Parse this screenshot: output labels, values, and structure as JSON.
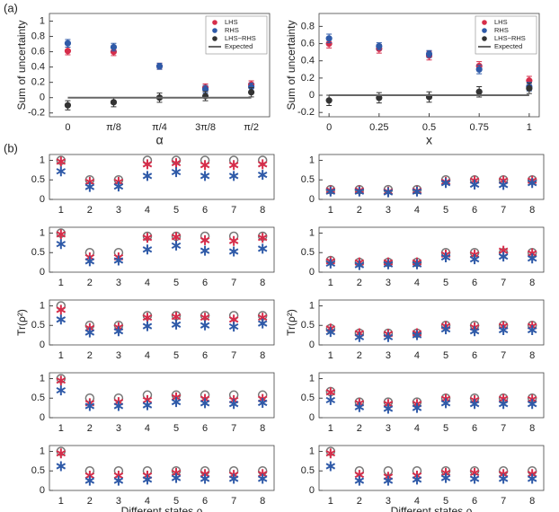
{
  "panel_labels": [
    "(a)",
    "(b)"
  ],
  "chart_data": [
    {
      "type": "errorbar",
      "ylabel": "Sum of uncertainty",
      "xlabel": "α",
      "categories": [
        "0",
        "π/8",
        "π/4",
        "3π/8",
        "π/2"
      ],
      "ylim": [
        -0.25,
        1.1
      ],
      "yticks": [
        -0.2,
        0,
        0.2,
        0.4,
        0.6,
        0.8,
        1
      ],
      "legend": "upper right",
      "series": [
        {
          "name": "LHS",
          "color": "#d62d4a",
          "marker": "dot",
          "values": [
            0.61,
            0.6,
            0.41,
            0.13,
            0.17
          ],
          "errors": [
            0.05,
            0.05,
            0.04,
            0.05,
            0.05
          ]
        },
        {
          "name": "RHS",
          "color": "#2f5aa8",
          "marker": "dot",
          "values": [
            0.71,
            0.66,
            0.41,
            0.11,
            0.14
          ],
          "errors": [
            0.05,
            0.05,
            0.04,
            0.05,
            0.05
          ]
        },
        {
          "name": "LHS−RHS",
          "color": "#333333",
          "marker": "dot",
          "values": [
            -0.1,
            -0.06,
            0.0,
            0.02,
            0.07
          ],
          "errors": [
            0.06,
            0.06,
            0.06,
            0.06,
            0.06
          ]
        },
        {
          "name": "Expected",
          "color": "#666666",
          "marker": "line",
          "values": [
            0,
            0,
            0,
            0,
            0
          ]
        }
      ]
    },
    {
      "type": "errorbar",
      "ylabel": "Sum of uncertainty",
      "xlabel": "x",
      "x": [
        0,
        0.25,
        0.5,
        0.75,
        1
      ],
      "xlim": [
        -0.05,
        1.05
      ],
      "xticks": [
        0,
        0.25,
        0.5,
        0.75,
        1
      ],
      "ylim": [
        -0.25,
        0.95
      ],
      "yticks": [
        -0.2,
        0,
        0.2,
        0.4,
        0.6,
        0.8
      ],
      "legend": "upper right",
      "series": [
        {
          "name": "LHS",
          "color": "#d62d4a",
          "marker": "dot",
          "values": [
            0.6,
            0.54,
            0.46,
            0.34,
            0.17
          ],
          "errors": [
            0.05,
            0.05,
            0.05,
            0.05,
            0.05
          ]
        },
        {
          "name": "RHS",
          "color": "#2f5aa8",
          "marker": "dot",
          "values": [
            0.66,
            0.57,
            0.48,
            0.3,
            0.1
          ],
          "errors": [
            0.05,
            0.04,
            0.04,
            0.05,
            0.05
          ]
        },
        {
          "name": "LHS−RHS",
          "color": "#333333",
          "marker": "dot",
          "values": [
            -0.06,
            -0.03,
            -0.02,
            0.04,
            0.08
          ],
          "errors": [
            0.06,
            0.06,
            0.06,
            0.06,
            0.06
          ]
        },
        {
          "name": "Expected",
          "color": "#666666",
          "marker": "line",
          "values": [
            0,
            0,
            0,
            0,
            0
          ]
        }
      ]
    },
    {
      "type": "scatter",
      "categories": [
        "1",
        "2",
        "3",
        "4",
        "5",
        "6",
        "7",
        "8"
      ],
      "ylim": [
        0,
        1.15
      ],
      "yticks": [
        0,
        0.5,
        1
      ],
      "series": [
        {
          "color": "#777777",
          "marker": "circle",
          "values": [
            1,
            0.5,
            0.5,
            1,
            1,
            1,
            1,
            1
          ]
        },
        {
          "color": "#d62d4a",
          "marker": "star",
          "values": [
            0.97,
            0.45,
            0.45,
            0.9,
            0.93,
            0.88,
            0.88,
            0.9
          ]
        },
        {
          "color": "#2f5aa8",
          "marker": "star",
          "values": [
            0.72,
            0.32,
            0.33,
            0.6,
            0.7,
            0.6,
            0.6,
            0.63
          ]
        }
      ]
    },
    {
      "type": "scatter",
      "categories": [
        "1",
        "2",
        "3",
        "4",
        "5",
        "6",
        "7",
        "8"
      ],
      "ylim": [
        0,
        1.15
      ],
      "yticks": [
        0,
        0.5,
        1
      ],
      "series": [
        {
          "color": "#777777",
          "marker": "circle",
          "values": [
            0.25,
            0.25,
            0.25,
            0.25,
            0.5,
            0.5,
            0.5,
            0.5
          ]
        },
        {
          "color": "#d62d4a",
          "marker": "star",
          "values": [
            0.23,
            0.23,
            0.2,
            0.22,
            0.45,
            0.48,
            0.48,
            0.48
          ]
        },
        {
          "color": "#2f5aa8",
          "marker": "star",
          "values": [
            0.2,
            0.2,
            0.18,
            0.2,
            0.42,
            0.38,
            0.37,
            0.42
          ]
        }
      ]
    },
    {
      "type": "scatter",
      "categories": [
        "1",
        "2",
        "3",
        "4",
        "5",
        "6",
        "7",
        "8"
      ],
      "ylim": [
        0,
        1.15
      ],
      "yticks": [
        0,
        0.5,
        1
      ],
      "series": [
        {
          "color": "#777777",
          "marker": "circle",
          "values": [
            1,
            0.5,
            0.5,
            0.92,
            0.92,
            0.92,
            0.92,
            0.92
          ]
        },
        {
          "color": "#d62d4a",
          "marker": "star",
          "values": [
            0.97,
            0.38,
            0.38,
            0.88,
            0.9,
            0.82,
            0.8,
            0.88
          ]
        },
        {
          "color": "#2f5aa8",
          "marker": "star",
          "values": [
            0.72,
            0.28,
            0.3,
            0.58,
            0.68,
            0.55,
            0.53,
            0.6
          ]
        }
      ]
    },
    {
      "type": "scatter",
      "categories": [
        "1",
        "2",
        "3",
        "4",
        "5",
        "6",
        "7",
        "8"
      ],
      "ylim": [
        0,
        1.15
      ],
      "yticks": [
        0,
        0.5,
        1
      ],
      "series": [
        {
          "color": "#777777",
          "marker": "circle",
          "values": [
            0.3,
            0.25,
            0.25,
            0.25,
            0.5,
            0.5,
            0.5,
            0.5
          ]
        },
        {
          "color": "#d62d4a",
          "marker": "star",
          "values": [
            0.28,
            0.25,
            0.25,
            0.25,
            0.45,
            0.45,
            0.55,
            0.48
          ]
        },
        {
          "color": "#2f5aa8",
          "marker": "star",
          "values": [
            0.22,
            0.18,
            0.2,
            0.2,
            0.38,
            0.33,
            0.4,
            0.35
          ]
        }
      ]
    },
    {
      "type": "scatter",
      "ylabel": "Tr(ρ²)",
      "categories": [
        "1",
        "2",
        "3",
        "4",
        "5",
        "6",
        "7",
        "8"
      ],
      "ylim": [
        0,
        1.15
      ],
      "yticks": [
        0,
        0.5,
        1
      ],
      "series": [
        {
          "color": "#777777",
          "marker": "circle",
          "values": [
            1,
            0.5,
            0.5,
            0.75,
            0.75,
            0.75,
            0.75,
            0.75
          ]
        },
        {
          "color": "#d62d4a",
          "marker": "star",
          "values": [
            0.9,
            0.43,
            0.45,
            0.7,
            0.72,
            0.7,
            0.65,
            0.7
          ]
        },
        {
          "color": "#2f5aa8",
          "marker": "star",
          "values": [
            0.65,
            0.32,
            0.35,
            0.48,
            0.52,
            0.5,
            0.47,
            0.55
          ]
        }
      ]
    },
    {
      "type": "scatter",
      "ylabel": "Tr(ρ²)",
      "categories": [
        "1",
        "2",
        "3",
        "4",
        "5",
        "6",
        "7",
        "8"
      ],
      "ylim": [
        0,
        1.15
      ],
      "yticks": [
        0,
        0.5,
        1
      ],
      "series": [
        {
          "color": "#777777",
          "marker": "circle",
          "values": [
            0.42,
            0.3,
            0.3,
            0.3,
            0.5,
            0.5,
            0.5,
            0.5
          ]
        },
        {
          "color": "#d62d4a",
          "marker": "star",
          "values": [
            0.42,
            0.3,
            0.28,
            0.3,
            0.48,
            0.45,
            0.48,
            0.48
          ]
        },
        {
          "color": "#2f5aa8",
          "marker": "star",
          "values": [
            0.33,
            0.2,
            0.2,
            0.25,
            0.4,
            0.35,
            0.38,
            0.38
          ]
        }
      ]
    },
    {
      "type": "scatter",
      "categories": [
        "1",
        "2",
        "3",
        "4",
        "5",
        "6",
        "7",
        "8"
      ],
      "ylim": [
        0,
        1.15
      ],
      "yticks": [
        0,
        0.5,
        1
      ],
      "series": [
        {
          "color": "#777777",
          "marker": "circle",
          "values": [
            1,
            0.5,
            0.5,
            0.58,
            0.58,
            0.58,
            0.58,
            0.58
          ]
        },
        {
          "color": "#d62d4a",
          "marker": "star",
          "values": [
            0.95,
            0.37,
            0.4,
            0.45,
            0.52,
            0.48,
            0.45,
            0.48
          ]
        },
        {
          "color": "#2f5aa8",
          "marker": "star",
          "values": [
            0.7,
            0.3,
            0.3,
            0.32,
            0.4,
            0.37,
            0.35,
            0.38
          ]
        }
      ]
    },
    {
      "type": "scatter",
      "categories": [
        "1",
        "2",
        "3",
        "4",
        "5",
        "6",
        "7",
        "8"
      ],
      "ylim": [
        0,
        1.15
      ],
      "yticks": [
        0,
        0.5,
        1
      ],
      "series": [
        {
          "color": "#777777",
          "marker": "circle",
          "values": [
            0.67,
            0.4,
            0.4,
            0.4,
            0.5,
            0.5,
            0.5,
            0.5
          ]
        },
        {
          "color": "#d62d4a",
          "marker": "star",
          "values": [
            0.65,
            0.37,
            0.35,
            0.35,
            0.48,
            0.45,
            0.48,
            0.47
          ]
        },
        {
          "color": "#2f5aa8",
          "marker": "star",
          "values": [
            0.45,
            0.27,
            0.23,
            0.25,
            0.37,
            0.35,
            0.35,
            0.35
          ]
        }
      ]
    },
    {
      "type": "scatter",
      "xlabel": "Different states ρ",
      "categories": [
        "1",
        "2",
        "3",
        "4",
        "5",
        "6",
        "7",
        "8"
      ],
      "ylim": [
        0,
        1.15
      ],
      "yticks": [
        0,
        0.5,
        1
      ],
      "series": [
        {
          "color": "#777777",
          "marker": "circle",
          "values": [
            1,
            0.5,
            0.5,
            0.5,
            0.5,
            0.5,
            0.5,
            0.5
          ]
        },
        {
          "color": "#d62d4a",
          "marker": "star",
          "values": [
            0.95,
            0.38,
            0.38,
            0.38,
            0.45,
            0.42,
            0.4,
            0.42
          ]
        },
        {
          "color": "#2f5aa8",
          "marker": "star",
          "values": [
            0.62,
            0.25,
            0.25,
            0.28,
            0.32,
            0.3,
            0.3,
            0.3
          ]
        }
      ]
    },
    {
      "type": "scatter",
      "xlabel": "Different states ρ",
      "categories": [
        "1",
        "2",
        "3",
        "4",
        "5",
        "6",
        "7",
        "8"
      ],
      "ylim": [
        0,
        1.15
      ],
      "yticks": [
        0,
        0.5,
        1
      ],
      "series": [
        {
          "color": "#777777",
          "marker": "circle",
          "values": [
            1,
            0.5,
            0.5,
            0.5,
            0.5,
            0.5,
            0.5,
            0.5
          ]
        },
        {
          "color": "#d62d4a",
          "marker": "star",
          "values": [
            0.95,
            0.4,
            0.35,
            0.38,
            0.45,
            0.45,
            0.42,
            0.42
          ]
        },
        {
          "color": "#2f5aa8",
          "marker": "star",
          "values": [
            0.62,
            0.25,
            0.25,
            0.28,
            0.32,
            0.3,
            0.3,
            0.3
          ]
        }
      ]
    }
  ]
}
